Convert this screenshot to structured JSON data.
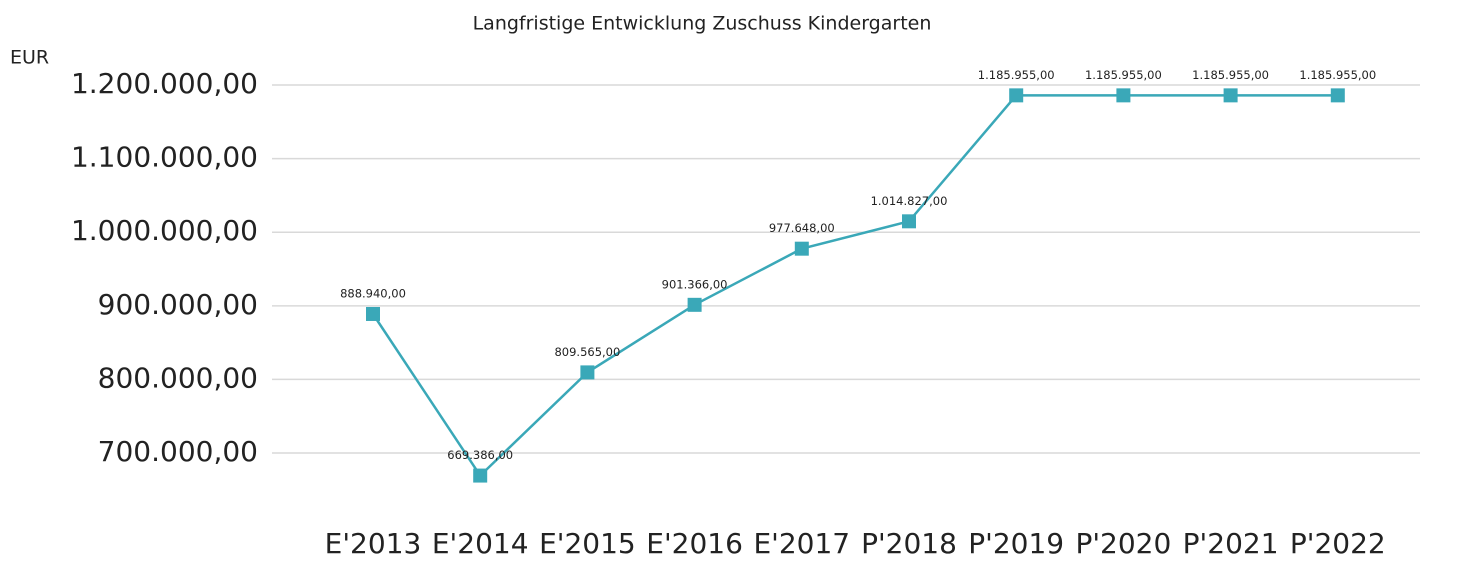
{
  "chart_data": {
    "type": "line",
    "title": "Langfristige Entwicklung Zuschuss Kindergarten",
    "y_axis_label": "EUR",
    "categories": [
      "E'2013",
      "E'2014",
      "E'2015",
      "E'2016",
      "E'2017",
      "P'2018",
      "P'2019",
      "P'2020",
      "P'2021",
      "P'2022"
    ],
    "values": [
      888940,
      669386,
      809565,
      901366,
      977648,
      1014827,
      1185955,
      1185955,
      1185955,
      1185955
    ],
    "value_labels": [
      "888.940,00",
      "669.386,00",
      "809.565,00",
      "901.366,00",
      "977.648,00",
      "1.014.827,00",
      "1.185.955,00",
      "1.185.955,00",
      "1.185.955,00",
      "1.185.955,00"
    ],
    "color": "#3aa8b8",
    "ylim": [
      640000,
      1220000
    ],
    "yticks": [
      {
        "value": 700000,
        "label": "700.000,00"
      },
      {
        "value": 800000,
        "label": "800.000,00"
      },
      {
        "value": 900000,
        "label": "900.000,00"
      },
      {
        "value": 1000000,
        "label": "1.000.000,00"
      },
      {
        "value": 1100000,
        "label": "1.100.000,00"
      },
      {
        "value": 1200000,
        "label": "1.200.000,00"
      }
    ],
    "grid": true
  }
}
